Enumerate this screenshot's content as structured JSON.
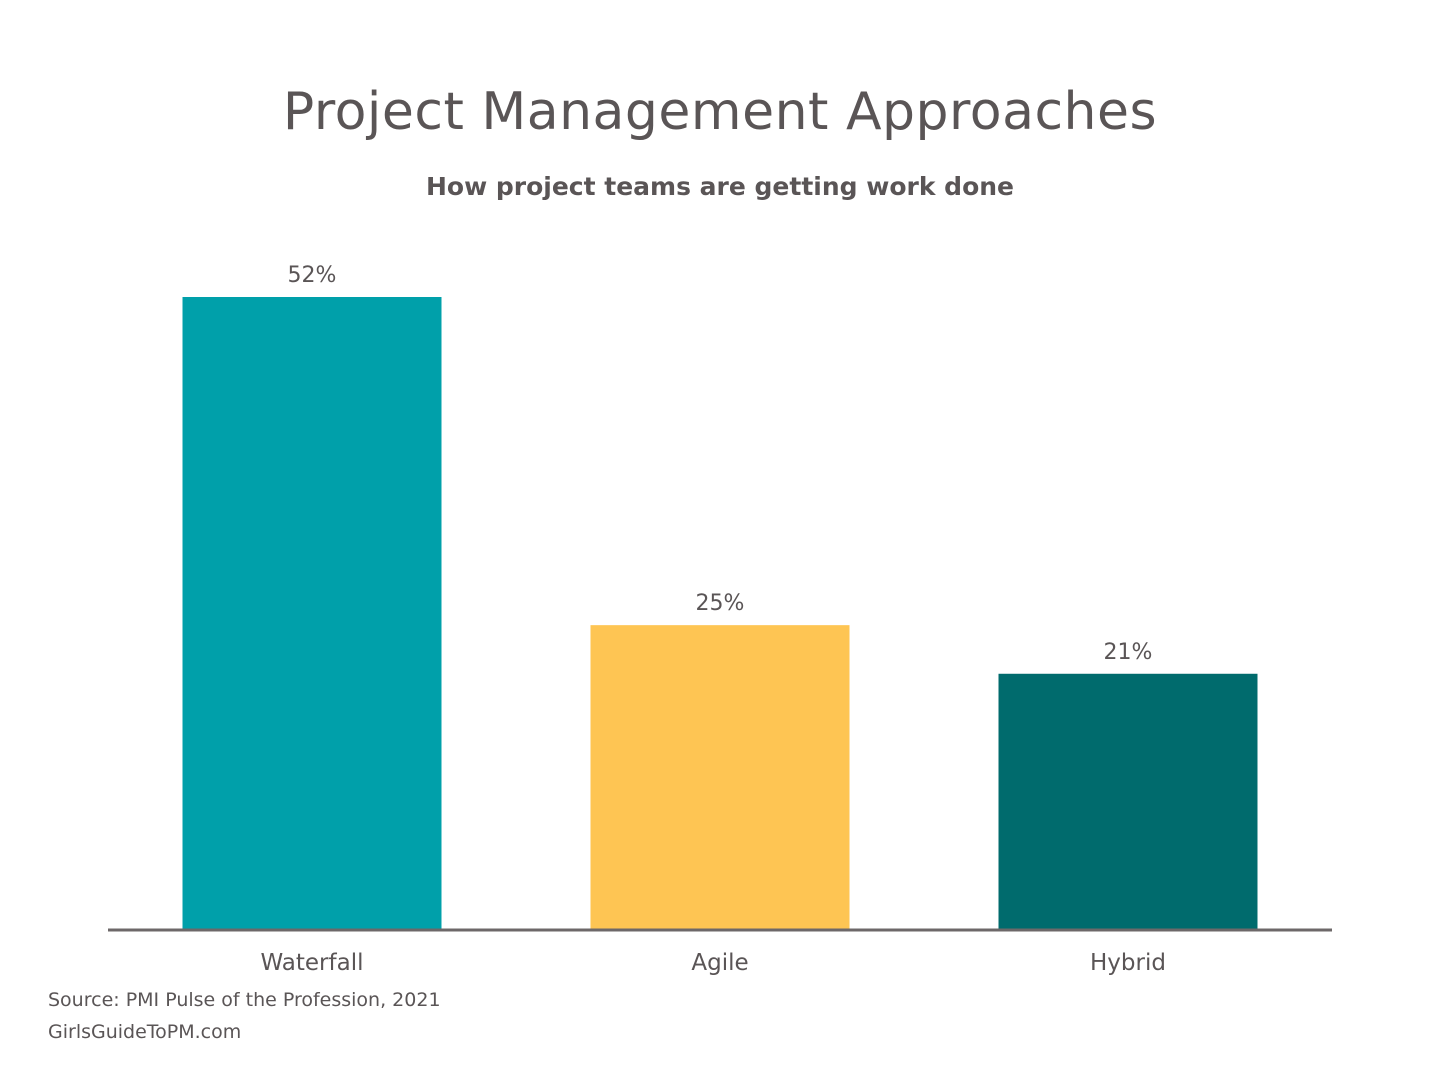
{
  "title": "Project Management Approaches",
  "subtitle": "How project teams are getting work done",
  "footer": {
    "source": "Source: PMI Pulse of the Profession, 2021",
    "site": "GirlsGuideToPM.com"
  },
  "chart_data": {
    "type": "bar",
    "categories": [
      "Waterfall",
      "Agile",
      "Hybrid"
    ],
    "values": [
      52,
      25,
      21
    ],
    "data_labels": [
      "52%",
      "25%",
      "21%"
    ],
    "colors": [
      "#00a0aa",
      "#fec553",
      "#006b6d"
    ],
    "axis_color": "#6d6869",
    "ylim": [
      0,
      52
    ],
    "grid": false,
    "legend": "none"
  }
}
